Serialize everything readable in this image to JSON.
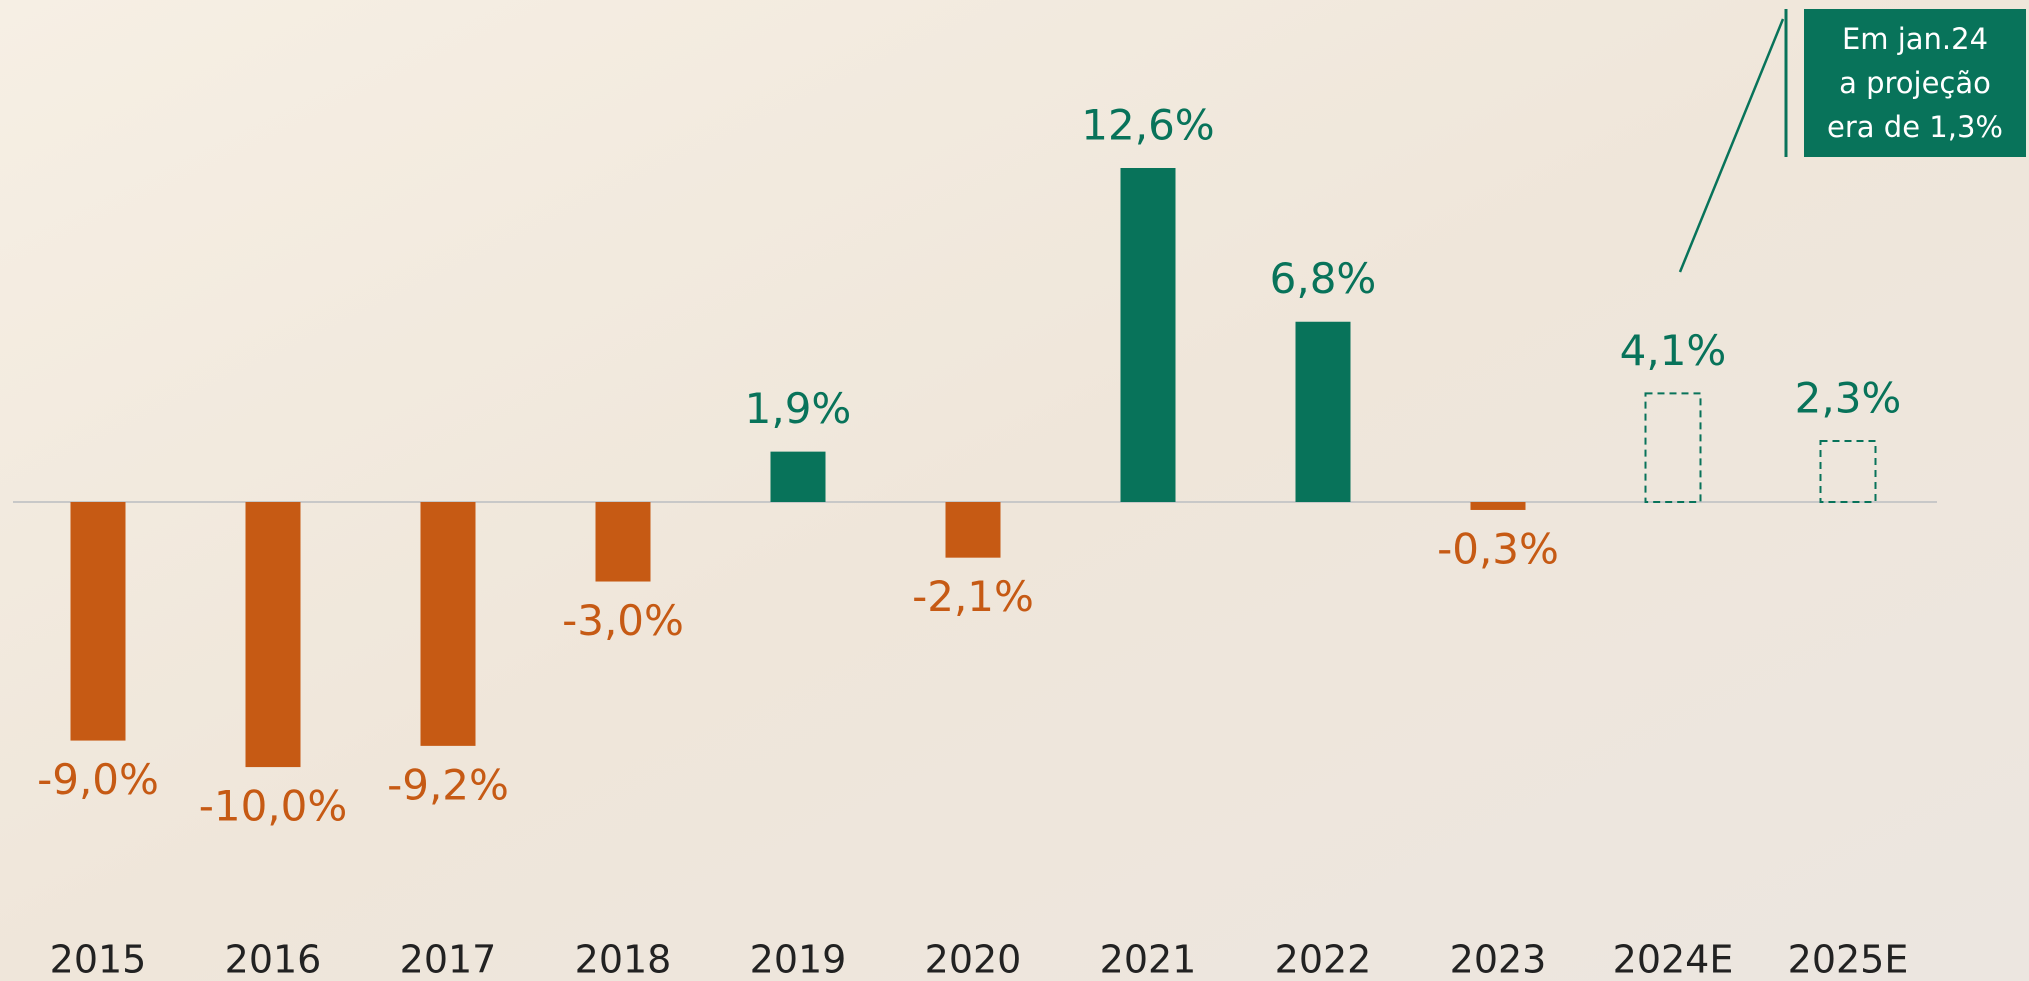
{
  "chart_data": {
    "type": "bar",
    "categories": [
      "2015",
      "2016",
      "2017",
      "2018",
      "2019",
      "2020",
      "2021",
      "2022",
      "2023",
      "2024E",
      "2025E"
    ],
    "values": [
      -9.0,
      -10.0,
      -9.2,
      -3.0,
      1.9,
      -2.1,
      12.6,
      6.8,
      -0.3,
      4.1,
      2.3
    ],
    "value_labels": [
      "-9,0%",
      "-10,0%",
      "-9,2%",
      "-3,0%",
      "1,9%",
      "-2,1%",
      "12,6%",
      "6,8%",
      "-0,3%",
      "4,1%",
      "2,3%"
    ],
    "projected": [
      false,
      false,
      false,
      false,
      false,
      false,
      false,
      false,
      false,
      true,
      true
    ],
    "positive_color": "#08735a",
    "negative_color": "#c65a14",
    "annotation": [
      "Em jan.24",
      "a projeção",
      "era de 1,3%"
    ]
  }
}
